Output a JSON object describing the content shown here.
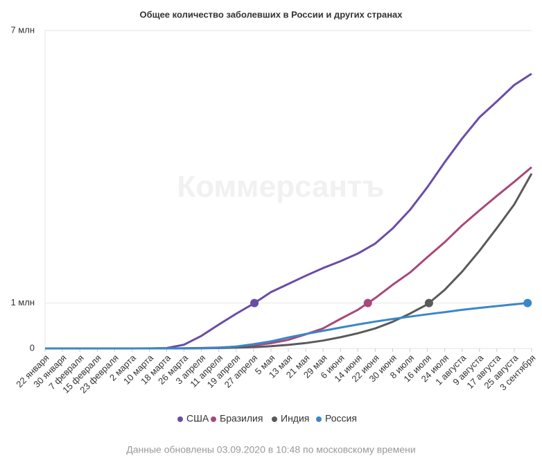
{
  "chart_data": {
    "type": "line",
    "title": "Общее количество заболевших в России и других странах",
    "watermark": "Коммерсантъ",
    "footnote": "Данные обновлены 03.09.2020 в 10:48 по московскому времени",
    "categories": [
      "22 января",
      "30 января",
      "7 февраля",
      "15 февраля",
      "23 февраля",
      "2 марта",
      "10 марта",
      "18 марта",
      "26 марта",
      "3 апреля",
      "11 апреля",
      "19 апреля",
      "27 апреля",
      "5 мая",
      "13 мая",
      "21 мая",
      "29 мая",
      "6 июня",
      "14 июня",
      "22 июня",
      "30 июня",
      "8 июля",
      "16 июля",
      "24 июля",
      "1 августа",
      "9 августа",
      "17 августа",
      "25 августа",
      "3 сентября"
    ],
    "series": [
      {
        "name": "США",
        "color": "#6a4ca7",
        "values": [
          0,
          0,
          0,
          0,
          0,
          0,
          0.001,
          0.008,
          0.083,
          0.276,
          0.526,
          0.764,
          0.988,
          1.24,
          1.42,
          1.6,
          1.77,
          1.92,
          2.09,
          2.31,
          2.64,
          3.05,
          3.55,
          4.1,
          4.62,
          5.09,
          5.44,
          5.8,
          6.05
        ]
      },
      {
        "name": "Бразилия",
        "color": "#a8487a",
        "values": [
          0,
          0,
          0,
          0,
          0,
          0,
          0,
          0.0003,
          0.003,
          0.009,
          0.02,
          0.038,
          0.067,
          0.115,
          0.19,
          0.31,
          0.44,
          0.65,
          0.85,
          1.11,
          1.4,
          1.67,
          2.01,
          2.34,
          2.71,
          3.04,
          3.36,
          3.67,
          3.99
        ]
      },
      {
        "name": "Индия",
        "color": "#5a5a5a",
        "values": [
          0,
          0,
          0,
          0,
          0,
          0,
          0,
          0,
          0.0007,
          0.0025,
          0.0076,
          0.017,
          0.029,
          0.049,
          0.078,
          0.118,
          0.173,
          0.246,
          0.333,
          0.44,
          0.585,
          0.767,
          0.97,
          1.29,
          1.69,
          2.15,
          2.65,
          3.17,
          3.85
        ]
      },
      {
        "name": "Россия",
        "color": "#3a87c8",
        "values": [
          0,
          0,
          0,
          0,
          0,
          0,
          0,
          0.0001,
          0.0008,
          0.0044,
          0.015,
          0.043,
          0.094,
          0.155,
          0.242,
          0.318,
          0.388,
          0.459,
          0.528,
          0.592,
          0.648,
          0.7,
          0.752,
          0.8,
          0.85,
          0.892,
          0.932,
          0.97,
          1.009
        ]
      }
    ],
    "ylim": [
      0,
      7
    ],
    "yticks": [
      0,
      {
        "value": 1,
        "label": "1 млн"
      },
      {
        "value": 7,
        "label": "7 млн"
      }
    ],
    "grid": true
  }
}
